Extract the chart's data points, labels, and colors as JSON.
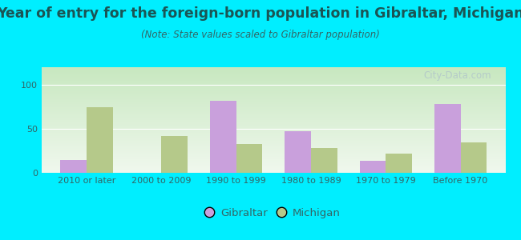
{
  "title": "Year of entry for the foreign-born population in Gibraltar, Michigan",
  "subtitle": "(Note: State values scaled to Gibraltar population)",
  "categories": [
    "2010 or later",
    "2000 to 2009",
    "1990 to 1999",
    "1980 to 1989",
    "1970 to 1979",
    "Before 1970"
  ],
  "gibraltar_values": [
    15,
    0,
    82,
    47,
    14,
    78
  ],
  "michigan_values": [
    75,
    42,
    33,
    28,
    22,
    35
  ],
  "gibraltar_color": "#c9a0dc",
  "michigan_color": "#b5c98a",
  "background_outer": "#00eeff",
  "background_inner_top": "#f0f8ee",
  "background_inner_bottom": "#c8e8c0",
  "ylim": [
    0,
    120
  ],
  "yticks": [
    0,
    50,
    100
  ],
  "bar_width": 0.35,
  "legend_labels": [
    "Gibraltar",
    "Michigan"
  ],
  "watermark": "City-Data.com",
  "title_color": "#1a5555",
  "subtitle_color": "#336666",
  "tick_color": "#336666",
  "title_fontsize": 12.5,
  "subtitle_fontsize": 8.5,
  "tick_fontsize": 8.0
}
